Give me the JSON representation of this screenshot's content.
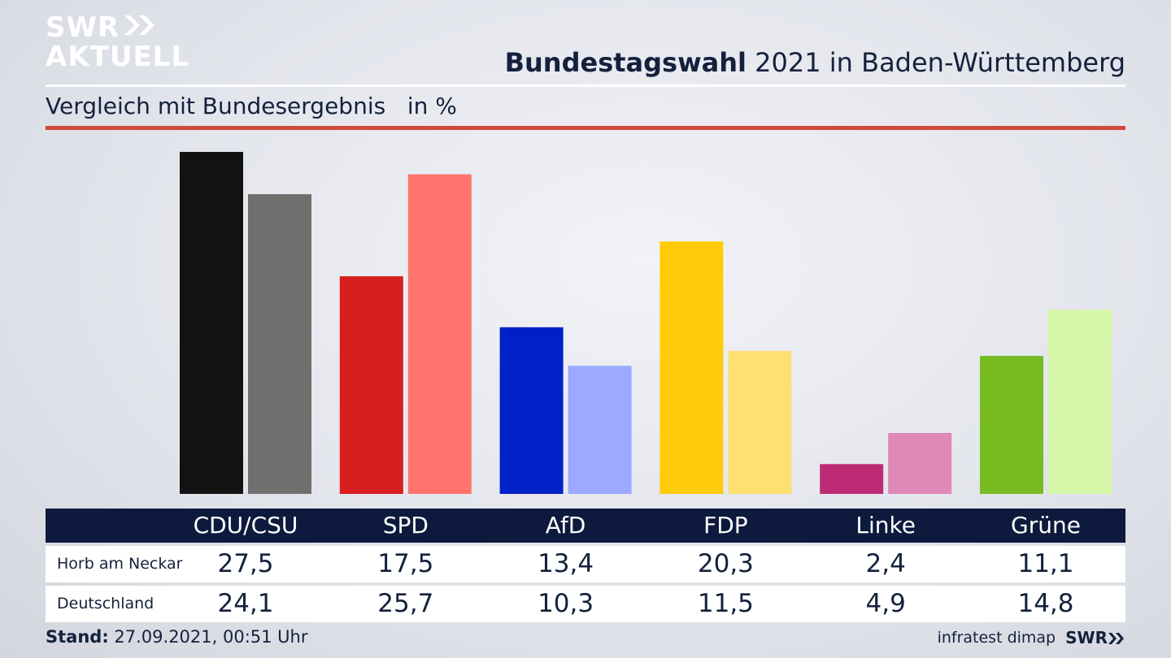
{
  "logo": {
    "line1": "SWR",
    "line2": "AKTUELL"
  },
  "header": {
    "title_bold": "Bundestagswahl",
    "title_rest": " 2021 in Baden-Württemberg",
    "subtitle": "Vergleich mit Bundesergebnis   in %"
  },
  "table": {
    "rows": [
      {
        "label": "Horb am Neckar"
      },
      {
        "label": "Deutschland"
      }
    ]
  },
  "footer": {
    "stand_label": "Stand:",
    "stand_value": " 27.09.2021, 00:51 Uhr",
    "source": "infratest dimap",
    "brand": "SWR"
  },
  "colors": {
    "local": [
      "#121212",
      "#d81e1e",
      "#0020c8",
      "#ffcc0a",
      "#bd2c74",
      "#76bc21"
    ],
    "national": [
      "#72706e",
      "#ff746c",
      "#9ca9ff",
      "#fde071",
      "#e088b8",
      "#d5f7a8"
    ]
  },
  "chart_data": {
    "type": "bar",
    "categories": [
      "CDU/CSU",
      "SPD",
      "AfD",
      "FDP",
      "Linke",
      "Grüne"
    ],
    "series": [
      {
        "name": "Horb am Neckar",
        "values": [
          27.5,
          17.5,
          13.4,
          20.3,
          2.4,
          11.1
        ],
        "display": [
          "27,5",
          "17,5",
          "13,4",
          "20,3",
          "2,4",
          "11,1"
        ]
      },
      {
        "name": "Deutschland",
        "values": [
          24.1,
          25.7,
          10.3,
          11.5,
          4.9,
          14.8
        ],
        "display": [
          "24,1",
          "25,7",
          "10,3",
          "11,5",
          "4,9",
          "14,8"
        ]
      }
    ],
    "ylim": [
      0,
      27.5
    ]
  }
}
